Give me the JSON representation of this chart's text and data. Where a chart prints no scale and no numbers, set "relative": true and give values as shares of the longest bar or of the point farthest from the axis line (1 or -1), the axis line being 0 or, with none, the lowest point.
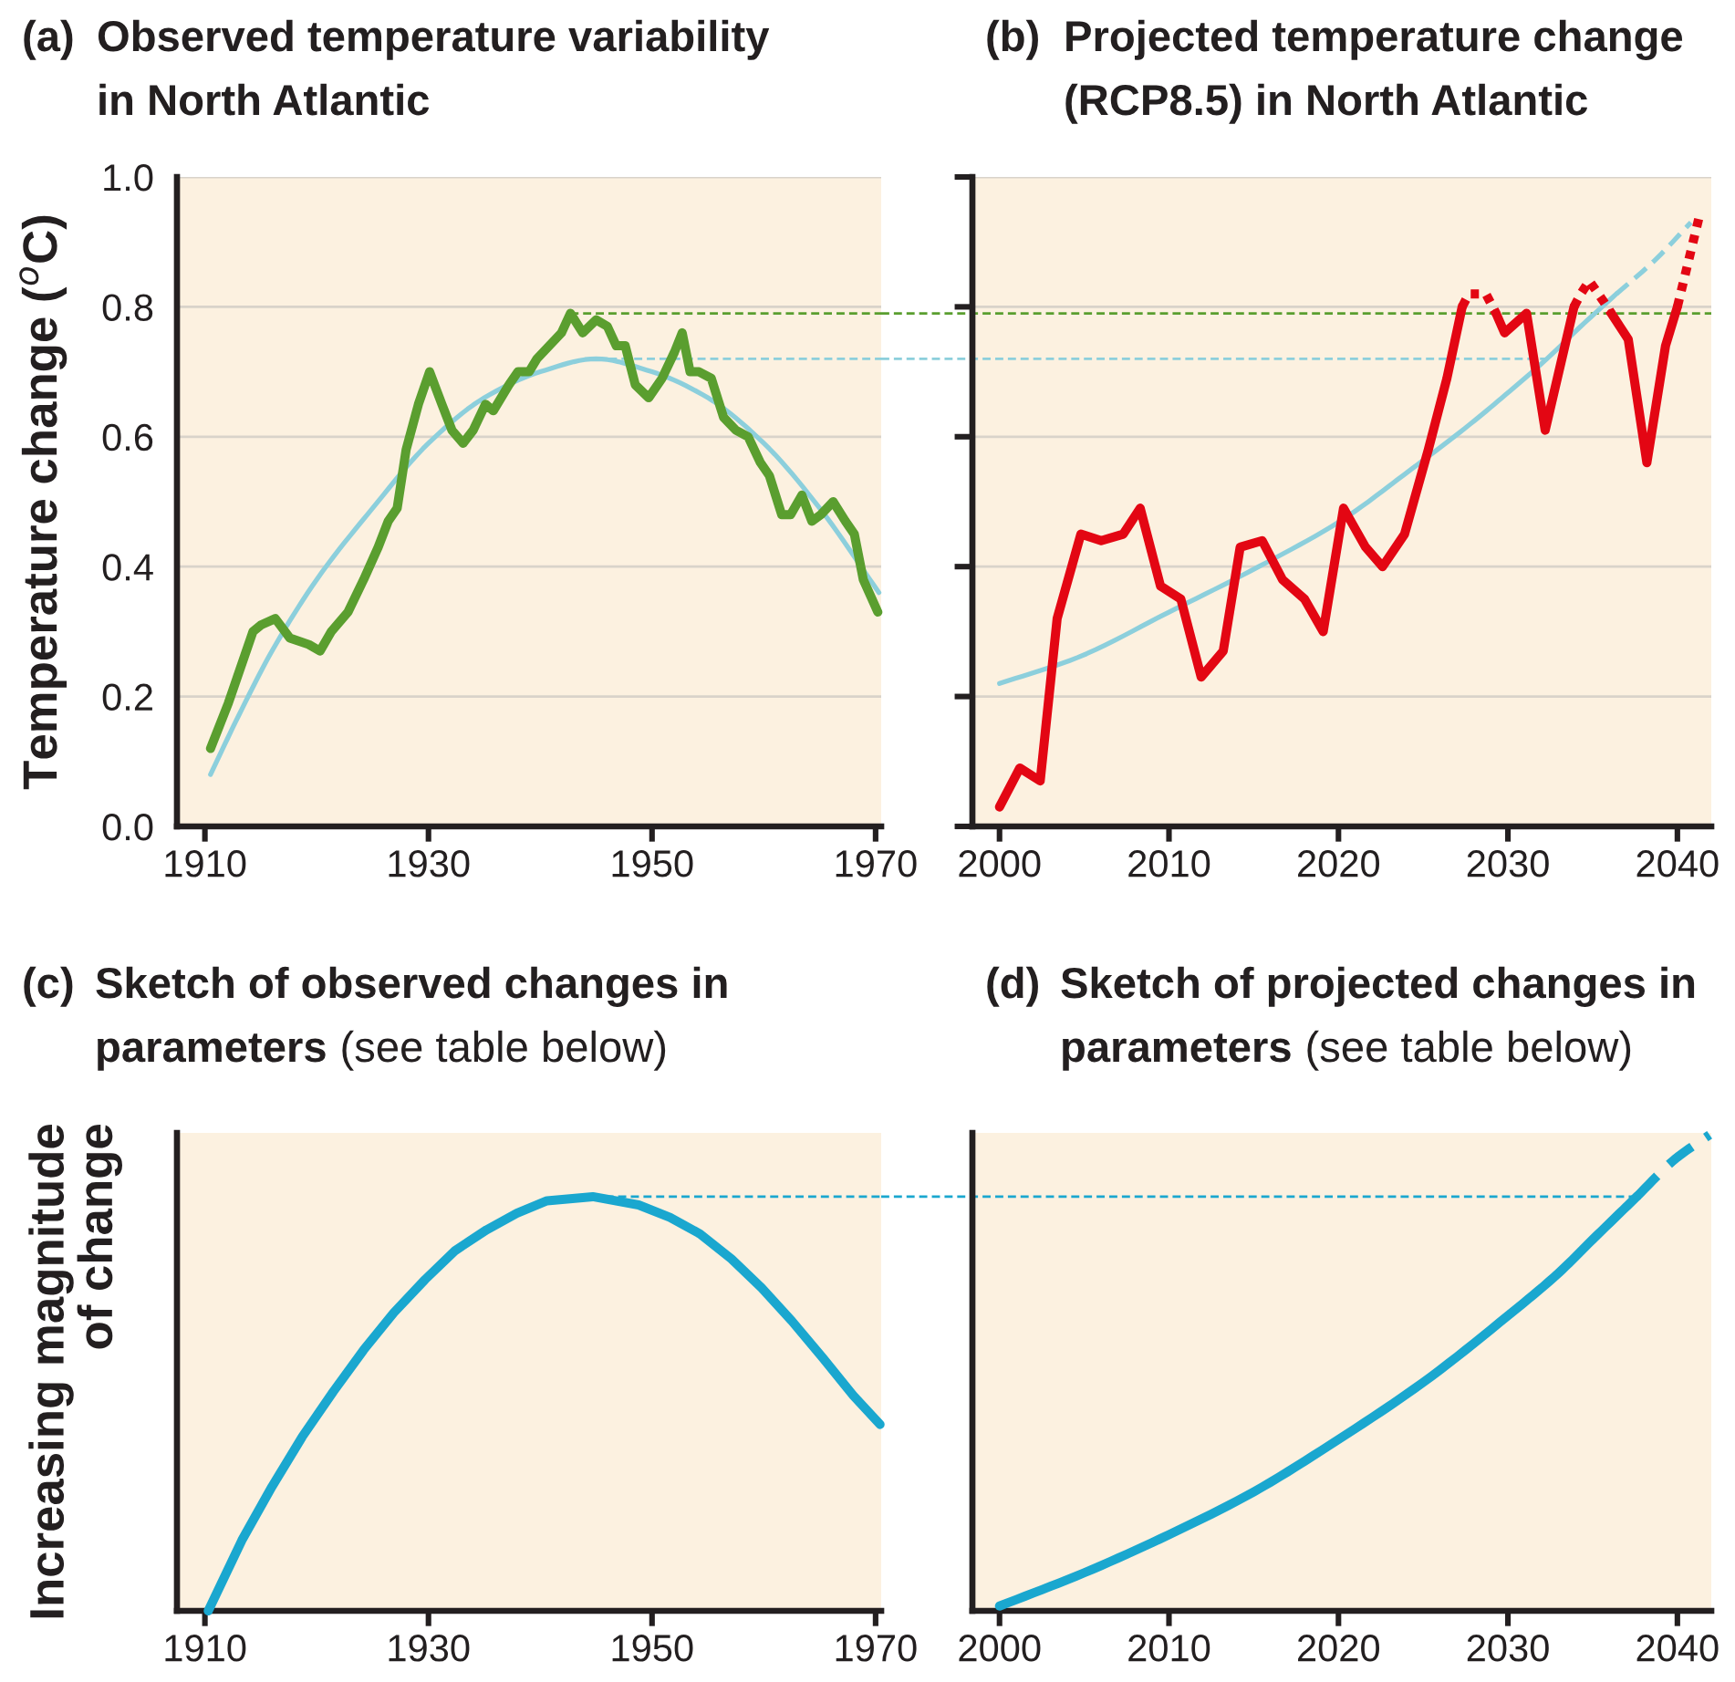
{
  "chart_data": [
    {
      "type": "line",
      "annotations": [
        "(a)"
      ],
      "title": "Observed temperature variability\nin North Atlantic",
      "ylabel": "Temperature change ($^{o}$C)",
      "xlim": [
        1907.5,
        1970.5
      ],
      "xticks": [
        1910,
        1930,
        1950,
        1970
      ],
      "ylim": [
        0,
        1
      ],
      "yticks": [
        {
          "value": 0,
          "label": "0.0"
        },
        0.2,
        0.4,
        0.6,
        0.8,
        {
          "value": 1,
          "label": "1.0"
        }
      ],
      "grid": "y",
      "series": [
        {
          "color": "#5a9e2f",
          "x": [
            1910.5,
            1912.1,
            1914.3,
            1915.0,
            1916.3,
            1917.6,
            1919.3,
            1920.3,
            1921.3,
            1922.8,
            1924.2,
            1925.5,
            1926.4,
            1927.2,
            1928.0,
            1929.1,
            1930.1,
            1931.2,
            1932.1,
            1933.1,
            1934.0,
            1935.1,
            1935.8,
            1936.5,
            1937.2,
            1938.0,
            1939.0,
            1939.7,
            1940.8,
            1941.9,
            1942.7,
            1943.8,
            1945.0,
            1946.0,
            1946.8,
            1947.6,
            1948.5,
            1949.7,
            1950.9,
            1952.0,
            1952.7,
            1953.4,
            1954.2,
            1955.3,
            1956.4,
            1957.5,
            1958.6,
            1959.7,
            1960.5,
            1961.6,
            1962.4,
            1963.4,
            1964.3,
            1965.1,
            1966.2,
            1967.3,
            1968.1,
            1968.9,
            1970.2
          ],
          "values": [
            0.12,
            0.19,
            0.3,
            0.31,
            0.32,
            0.29,
            0.28,
            0.27,
            0.3,
            0.33,
            0.38,
            0.43,
            0.47,
            0.49,
            0.58,
            0.65,
            0.7,
            0.65,
            0.61,
            0.59,
            0.61,
            0.65,
            0.64,
            0.66,
            0.68,
            0.7,
            0.7,
            0.72,
            0.74,
            0.76,
            0.79,
            0.76,
            0.78,
            0.77,
            0.74,
            0.74,
            0.68,
            0.66,
            0.69,
            0.73,
            0.76,
            0.7,
            0.7,
            0.69,
            0.63,
            0.61,
            0.6,
            0.56,
            0.54,
            0.48,
            0.48,
            0.51,
            0.47,
            0.48,
            0.5,
            0.47,
            0.45,
            0.38,
            0.33
          ]
        },
        {
          "color": "#8ccfdc",
          "x": [
            1910.5,
            1913,
            1916,
            1920,
            1925,
            1930,
            1935,
            1940,
            1945,
            1950,
            1955,
            1960,
            1965,
            1970.3
          ],
          "values": [
            0.08,
            0.17,
            0.27,
            0.38,
            0.49,
            0.59,
            0.66,
            0.7,
            0.72,
            0.7,
            0.66,
            0.59,
            0.49,
            0.36
          ]
        }
      ],
      "ref_lines": [
        {
          "axis": "y",
          "value": 0.79,
          "color": "#5a9e2f",
          "line_style": "dashed"
        },
        {
          "axis": "y",
          "value": 0.72,
          "color": "#8ccfdc",
          "line_style": "dashed"
        }
      ]
    },
    {
      "type": "line",
      "annotations": [
        "(b)"
      ],
      "title": "Projected temperature change\n(RCP8.5) in North Atlantic",
      "xlim": [
        1998.4,
        2042
      ],
      "xticks": [
        2000,
        2010,
        2020,
        2030,
        2040
      ],
      "ylim": [
        0,
        1
      ],
      "yticks": [
        0,
        0.2,
        0.4,
        0.6,
        0.8,
        1
      ],
      "tick_labels": "x",
      "grid": "y",
      "x": [
        2000.0,
        2001.2,
        2002.4,
        2003.4,
        2004.8,
        2006.0,
        2007.3,
        2008.3,
        2009.5,
        2010.7,
        2011.9,
        2013.2,
        2014.2,
        2015.5,
        2016.7,
        2018.0,
        2019.1,
        2020.3,
        2021.6,
        2022.6,
        2023.9,
        2025.3,
        2026.4,
        2027.3,
        2027.7,
        2028.7,
        2029.3,
        2029.8,
        2031.1,
        2032.2,
        2033.9,
        2034.3,
        2034.8,
        2035.6,
        2036.1,
        2037.1,
        2038.2,
        2039.3,
        2040.0,
        2041.3
      ],
      "series": [
        {
          "color": "#e30613",
          "line_style": "solid",
          "values": [
            0.03,
            0.09,
            0.07,
            0.32,
            0.45,
            0.44,
            0.45,
            0.49,
            0.37,
            0.35,
            0.23,
            0.27,
            0.43,
            0.44,
            0.38,
            0.35,
            0.3,
            0.49,
            0.43,
            0.4,
            0.45,
            0.58,
            0.69,
            0.8,
            null,
            null,
            0.79,
            0.76,
            0.79,
            0.61,
            0.8,
            null,
            null,
            null,
            0.79,
            0.75,
            0.56,
            0.74,
            0.8,
            null
          ]
        },
        {
          "color": "#e30613",
          "line_style": "dotted",
          "values": [
            null,
            null,
            null,
            null,
            null,
            null,
            null,
            null,
            null,
            null,
            null,
            null,
            null,
            null,
            null,
            null,
            null,
            null,
            null,
            null,
            null,
            null,
            null,
            0.8,
            0.82,
            0.82,
            0.79,
            null,
            null,
            null,
            0.8,
            0.82,
            0.84,
            0.81,
            0.79,
            null,
            null,
            null,
            0.8,
            0.94
          ]
        },
        {
          "color": "#8ccfdc",
          "line_style": "solid",
          "x": [
            2000.0,
            2004.6,
            2010.0,
            2015.3,
            2020.1,
            2024.3,
            2027.8,
            2030.1,
            2032.3,
            2034.3,
            2036.4
          ],
          "values": [
            0.22,
            0.26,
            0.33,
            0.4,
            0.47,
            0.55,
            0.62,
            0.67,
            0.72,
            0.77,
            0.82
          ]
        },
        {
          "color": "#8ccfdc",
          "line_style": "dashed",
          "x": [
            2036.4,
            2038.6,
            2040.8
          ],
          "values": [
            0.82,
            0.87,
            0.93
          ]
        }
      ],
      "ref_lines": [
        {
          "axis": "y",
          "value": 0.79,
          "color": "#5a9e2f",
          "line_style": "dashed"
        },
        {
          "axis": "y",
          "value": 0.72,
          "color": "#8ccfdc",
          "line_style": "dashed"
        }
      ]
    },
    {
      "type": "line",
      "relative": true,
      "annotations": [
        "(c)"
      ],
      "title": "Sketch of observed changes in\nparameters (see table below)",
      "ylabel": "Increasing magnitude\nof change",
      "xlim": [
        1907.5,
        1970.5
      ],
      "xticks": [
        1910,
        1930,
        1950,
        1970
      ],
      "series": [
        {
          "color": "#1aa7cf",
          "x": [
            1910.3,
            1913.3,
            1916.0,
            1918.7,
            1921.5,
            1924.2,
            1926.9,
            1929.7,
            1932.4,
            1935.2,
            1937.9,
            1940.6,
            1944.7,
            1948.8,
            1951.6,
            1954.3,
            1957.1,
            1959.8,
            1962.5,
            1965.3,
            1968.0,
            1970.4
          ],
          "values": [
            0,
            0.17,
            0.3,
            0.42,
            0.53,
            0.63,
            0.72,
            0.8,
            0.87,
            0.92,
            0.96,
            0.99,
            1,
            0.98,
            0.95,
            0.91,
            0.85,
            0.78,
            0.7,
            0.61,
            0.52,
            0.45
          ]
        }
      ],
      "ref_lines": [
        {
          "axis": "y",
          "value": 1,
          "color": "#1aa7cf",
          "line_style": "dashed"
        }
      ]
    },
    {
      "type": "line",
      "relative": true,
      "annotations": [
        "(d)"
      ],
      "title": "Sketch of projected changes in\nparameters (see table below)",
      "xlim": [
        1998.4,
        2042
      ],
      "xticks": [
        2000,
        2010,
        2020,
        2030,
        2040
      ],
      "series": [
        {
          "color": "#1aa7cf",
          "line_style": "solid",
          "x": [
            2000.0,
            2005.0,
            2010.0,
            2015.0,
            2020.0,
            2025.0,
            2030.0,
            2033.0,
            2035.0,
            2037.6
          ],
          "values": [
            0.01,
            0.08,
            0.16,
            0.25,
            0.36,
            0.48,
            0.62,
            0.71,
            0.78,
            0.87
          ]
        },
        {
          "color": "#1aa7cf",
          "line_style": "dashed",
          "x": [
            2037.6,
            2039.9,
            2041.9
          ],
          "values": [
            0.87,
            0.95,
            1
          ]
        }
      ],
      "ref_lines": [
        {
          "axis": "y",
          "value": 0.87,
          "color": "#1aa7cf",
          "line_style": "dashed"
        }
      ]
    }
  ]
}
